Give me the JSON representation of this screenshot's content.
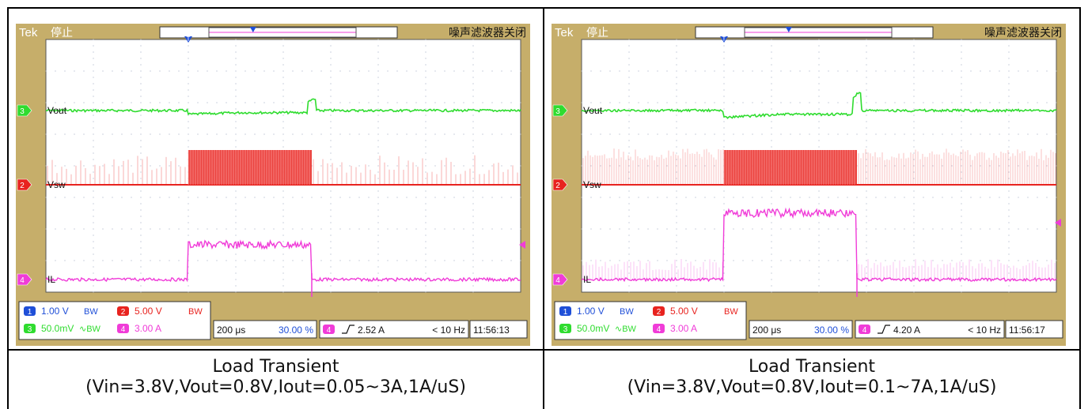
{
  "panels": [
    {
      "brand": "Tek",
      "status": "停止",
      "filter_text": "噪声滤波器关闭",
      "trigger_marker": "T",
      "ch_labels": {
        "vout": "Vout",
        "vsw": "Vsw",
        "il": "IL"
      },
      "ch_nums": {
        "ch1": "1",
        "ch2": "2",
        "ch3": "3",
        "ch4": "4"
      },
      "readout": {
        "ch1_scale": "1.00 V",
        "ch1_bw": "BW",
        "ch2_scale": "5.00 V",
        "ch2_bw": "BW",
        "ch3_scale": "50.0mV",
        "ch3_bw": "∿BW",
        "ch4_scale": "3.00 A",
        "timebase": "200 μs",
        "position": "30.00 %",
        "trigger_level": "2.52 A",
        "freq": "< 10 Hz",
        "time": "11:56:13"
      },
      "caption_line1": "Load Transient",
      "caption_line2": "(Vin=3.8V,Vout=0.8V,Iout=0.05~3A,1A/uS)"
    },
    {
      "brand": "Tek",
      "status": "停止",
      "filter_text": "噪声滤波器关闭",
      "trigger_marker": "T",
      "ch_labels": {
        "vout": "Vout",
        "vsw": "Vsw",
        "il": "IL"
      },
      "ch_nums": {
        "ch1": "1",
        "ch2": "2",
        "ch3": "3",
        "ch4": "4"
      },
      "readout": {
        "ch1_scale": "1.00 V",
        "ch1_bw": "BW",
        "ch2_scale": "5.00 V",
        "ch2_bw": "BW",
        "ch3_scale": "50.0mV",
        "ch3_bw": "∿BW",
        "ch4_scale": "3.00 A",
        "timebase": "200 μs",
        "position": "30.00 %",
        "trigger_level": "4.20 A",
        "freq": "< 10 Hz",
        "time": "11:56:17"
      },
      "caption_line1": "Load Transient",
      "caption_line2": "(Vin=3.8V,Vout=0.8V,Iout=0.1~7A,1A/uS)"
    }
  ],
  "colors": {
    "bezel": "#c6ae6a",
    "screen": "#ffffff",
    "ch1": "#1f4fd8",
    "ch2": "#e8231f",
    "ch3": "#2fdc2f",
    "ch4": "#f03cd8",
    "grid_dot": "#9aa6c0"
  },
  "chart_data": [
    {
      "type": "line",
      "time_per_div": "200 μs",
      "divisions_x": 10,
      "series": [
        {
          "name": "Vout",
          "x": [
            0,
            3,
            3,
            5.6,
            5.6,
            10
          ],
          "values": [
            0,
            0,
            -0.2,
            -0.2,
            0.1,
            0
          ]
        },
        {
          "name": "Vsw",
          "x": [
            0,
            3,
            3,
            5.6,
            5.6,
            10
          ],
          "values": [
            0,
            0,
            1,
            1,
            0,
            0
          ]
        },
        {
          "name": "IL",
          "x": [
            0,
            3,
            3,
            5.6,
            5.6,
            10
          ],
          "values": [
            0.05,
            0.05,
            3,
            3,
            0.05,
            0.05
          ]
        }
      ]
    },
    {
      "type": "line",
      "time_per_div": "200 μs",
      "divisions_x": 10,
      "series": [
        {
          "name": "Vout",
          "x": [
            0,
            3,
            3,
            5.8,
            5.8,
            10
          ],
          "values": [
            0,
            0,
            -0.4,
            -0.4,
            0.3,
            0
          ]
        },
        {
          "name": "Vsw",
          "x": [
            0,
            3,
            3,
            5.8,
            5.8,
            10
          ],
          "values": [
            0,
            0,
            1,
            1,
            0,
            0
          ]
        },
        {
          "name": "IL",
          "x": [
            0,
            3,
            3,
            5.8,
            5.8,
            10
          ],
          "values": [
            0.1,
            0.1,
            7,
            7,
            0.1,
            0.1
          ]
        }
      ]
    }
  ]
}
